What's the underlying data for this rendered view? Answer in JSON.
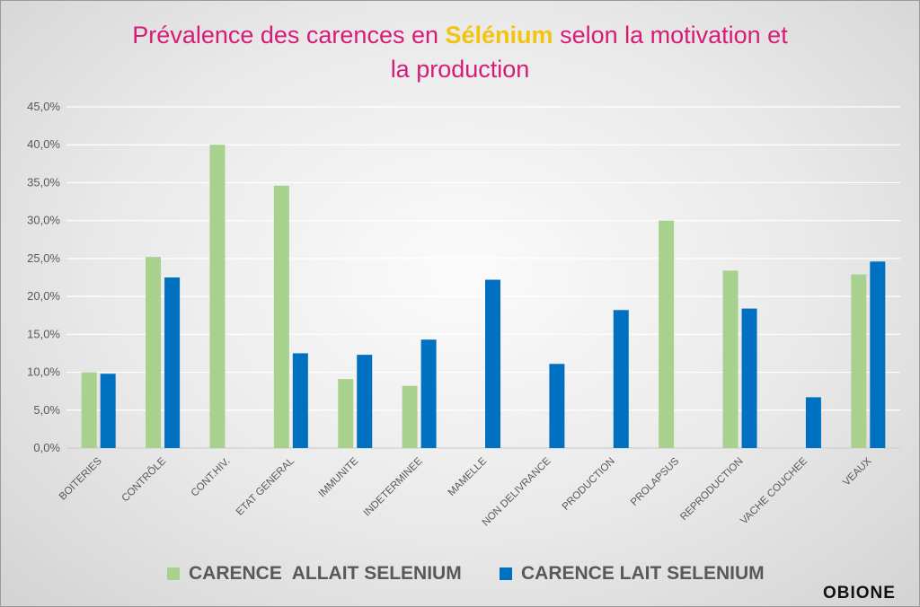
{
  "title": {
    "line1_before": "Prévalence des carences en ",
    "line1_highlight": "Sélénium",
    "line1_after": " selon la motivation et",
    "line2": "la production"
  },
  "colors": {
    "title": "#d81b77",
    "highlight": "#f2c40f",
    "series_allait": "#a9d18e",
    "series_lait": "#0070c0",
    "grid": "#ffffff",
    "tick_text": "#595959"
  },
  "logo": "OBIONE",
  "chart_data": {
    "type": "bar",
    "title": "Prévalence des carences en Sélénium selon la motivation et la production",
    "xlabel": "",
    "ylabel": "",
    "ylim": [
      0,
      45
    ],
    "y_tick_labels": [
      "0,0%",
      "5,0%",
      "10,0%",
      "15,0%",
      "20,0%",
      "25,0%",
      "30,0%",
      "35,0%",
      "40,0%",
      "45,0%"
    ],
    "grid": true,
    "legend_position": "bottom",
    "categories": [
      "BOITERIES",
      "CONTRÔLE",
      "CONT.HIV.",
      "ETAT GENERAL",
      "IMMUNITE",
      "INDETERMINEE",
      "MAMELLE",
      "NON DELIVRANCE",
      "PRODUCTION",
      "PROLAPSUS",
      "REPRODUCTION",
      "VACHE COUCHEE",
      "VEAUX"
    ],
    "series": [
      {
        "name": "CARENCE  ALLAIT SELENIUM",
        "color": "#a9d18e",
        "values": [
          10.0,
          25.2,
          40.0,
          34.6,
          9.1,
          8.2,
          0,
          0,
          0,
          30.0,
          23.4,
          0,
          22.9
        ]
      },
      {
        "name": "CARENCE LAIT SELENIUM",
        "color": "#0070c0",
        "values": [
          9.8,
          22.5,
          0,
          12.5,
          12.3,
          14.3,
          22.2,
          11.1,
          18.2,
          0,
          18.4,
          6.7,
          24.6
        ]
      }
    ]
  }
}
